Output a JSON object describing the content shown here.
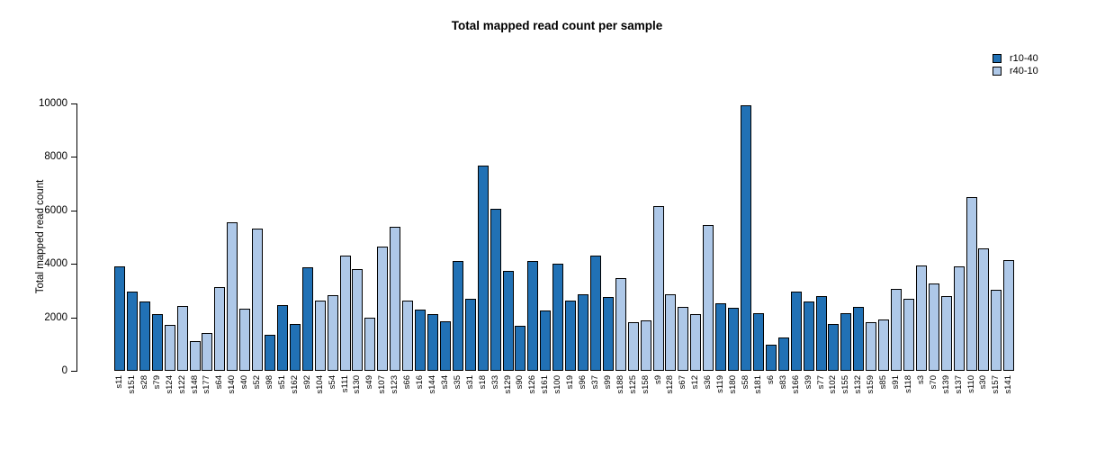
{
  "title": "Total mapped read count per sample",
  "legend": {
    "items": [
      {
        "label": "r10-40",
        "color": "#2171B5"
      },
      {
        "label": "r40-10",
        "color": "#AEC8E8"
      }
    ]
  },
  "chart_data": {
    "type": "bar",
    "title": "Total mapped read count per sample",
    "xlabel": "",
    "ylabel": "Total mapped read count",
    "ylim": [
      0,
      10000
    ],
    "yticks": [
      0,
      2000,
      4000,
      6000,
      8000,
      10000
    ],
    "grid": false,
    "legend_position": "top-right",
    "series_colors": {
      "r10-40": "#2171B5",
      "r40-10": "#AEC8E8"
    },
    "bars": [
      {
        "sample": "s11",
        "group": "r10-40",
        "value": 3890
      },
      {
        "sample": "s151",
        "group": "r10-40",
        "value": 2970
      },
      {
        "sample": "s28",
        "group": "r10-40",
        "value": 2580
      },
      {
        "sample": "s79",
        "group": "r10-40",
        "value": 2110
      },
      {
        "sample": "s124",
        "group": "r40-10",
        "value": 1720
      },
      {
        "sample": "s122",
        "group": "r40-10",
        "value": 2420
      },
      {
        "sample": "s148",
        "group": "r40-10",
        "value": 1100
      },
      {
        "sample": "s177",
        "group": "r40-10",
        "value": 1420
      },
      {
        "sample": "s64",
        "group": "r40-10",
        "value": 3120
      },
      {
        "sample": "s140",
        "group": "r40-10",
        "value": 5570
      },
      {
        "sample": "s40",
        "group": "r40-10",
        "value": 2340
      },
      {
        "sample": "s52",
        "group": "r40-10",
        "value": 5330
      },
      {
        "sample": "s98",
        "group": "r10-40",
        "value": 1350
      },
      {
        "sample": "s51",
        "group": "r10-40",
        "value": 2460
      },
      {
        "sample": "s162",
        "group": "r10-40",
        "value": 1760
      },
      {
        "sample": "s92",
        "group": "r10-40",
        "value": 3870
      },
      {
        "sample": "s104",
        "group": "r40-10",
        "value": 2640
      },
      {
        "sample": "s54",
        "group": "r40-10",
        "value": 2820
      },
      {
        "sample": "s111",
        "group": "r40-10",
        "value": 4300
      },
      {
        "sample": "s130",
        "group": "r40-10",
        "value": 3820
      },
      {
        "sample": "s49",
        "group": "r40-10",
        "value": 2000
      },
      {
        "sample": "s107",
        "group": "r40-10",
        "value": 4660
      },
      {
        "sample": "s123",
        "group": "r40-10",
        "value": 5390
      },
      {
        "sample": "s66",
        "group": "r40-10",
        "value": 2640
      },
      {
        "sample": "s16",
        "group": "r10-40",
        "value": 2280
      },
      {
        "sample": "s144",
        "group": "r10-40",
        "value": 2110
      },
      {
        "sample": "s34",
        "group": "r10-40",
        "value": 1850
      },
      {
        "sample": "s35",
        "group": "r10-40",
        "value": 4100
      },
      {
        "sample": "s31",
        "group": "r10-40",
        "value": 2690
      },
      {
        "sample": "s18",
        "group": "r10-40",
        "value": 7660
      },
      {
        "sample": "s33",
        "group": "r10-40",
        "value": 6050
      },
      {
        "sample": "s129",
        "group": "r10-40",
        "value": 3740
      },
      {
        "sample": "s90",
        "group": "r10-40",
        "value": 1690
      },
      {
        "sample": "s126",
        "group": "r10-40",
        "value": 4120
      },
      {
        "sample": "s161",
        "group": "r10-40",
        "value": 2240
      },
      {
        "sample": "s100",
        "group": "r10-40",
        "value": 3990
      },
      {
        "sample": "s19",
        "group": "r10-40",
        "value": 2640
      },
      {
        "sample": "s96",
        "group": "r10-40",
        "value": 2850
      },
      {
        "sample": "s37",
        "group": "r10-40",
        "value": 4310
      },
      {
        "sample": "s99",
        "group": "r10-40",
        "value": 2760
      },
      {
        "sample": "s188",
        "group": "r40-10",
        "value": 3460
      },
      {
        "sample": "s125",
        "group": "r40-10",
        "value": 1830
      },
      {
        "sample": "s158",
        "group": "r40-10",
        "value": 1890
      },
      {
        "sample": "s9",
        "group": "r40-10",
        "value": 6150
      },
      {
        "sample": "s128",
        "group": "r40-10",
        "value": 2870
      },
      {
        "sample": "s67",
        "group": "r40-10",
        "value": 2380
      },
      {
        "sample": "s12",
        "group": "r40-10",
        "value": 2130
      },
      {
        "sample": "s36",
        "group": "r40-10",
        "value": 5470
      },
      {
        "sample": "s119",
        "group": "r10-40",
        "value": 2510
      },
      {
        "sample": "s180",
        "group": "r10-40",
        "value": 2360
      },
      {
        "sample": "s58",
        "group": "r10-40",
        "value": 9940
      },
      {
        "sample": "s181",
        "group": "r10-40",
        "value": 2140
      },
      {
        "sample": "s6",
        "group": "r10-40",
        "value": 990
      },
      {
        "sample": "s83",
        "group": "r10-40",
        "value": 1250
      },
      {
        "sample": "s166",
        "group": "r10-40",
        "value": 2960
      },
      {
        "sample": "s39",
        "group": "r10-40",
        "value": 2590
      },
      {
        "sample": "s77",
        "group": "r10-40",
        "value": 2780
      },
      {
        "sample": "s102",
        "group": "r10-40",
        "value": 1750
      },
      {
        "sample": "s155",
        "group": "r10-40",
        "value": 2160
      },
      {
        "sample": "s132",
        "group": "r10-40",
        "value": 2400
      },
      {
        "sample": "s159",
        "group": "r40-10",
        "value": 1830
      },
      {
        "sample": "s85",
        "group": "r40-10",
        "value": 1930
      },
      {
        "sample": "s91",
        "group": "r40-10",
        "value": 3050
      },
      {
        "sample": "s118",
        "group": "r40-10",
        "value": 2700
      },
      {
        "sample": "s3",
        "group": "r40-10",
        "value": 3930
      },
      {
        "sample": "s70",
        "group": "r40-10",
        "value": 3250
      },
      {
        "sample": "s139",
        "group": "r40-10",
        "value": 2800
      },
      {
        "sample": "s137",
        "group": "r40-10",
        "value": 3900
      },
      {
        "sample": "s110",
        "group": "r40-10",
        "value": 6500
      },
      {
        "sample": "s30",
        "group": "r40-10",
        "value": 4590
      },
      {
        "sample": "s157",
        "group": "r40-10",
        "value": 3040
      },
      {
        "sample": "s141",
        "group": "r40-10",
        "value": 4140
      }
    ]
  }
}
